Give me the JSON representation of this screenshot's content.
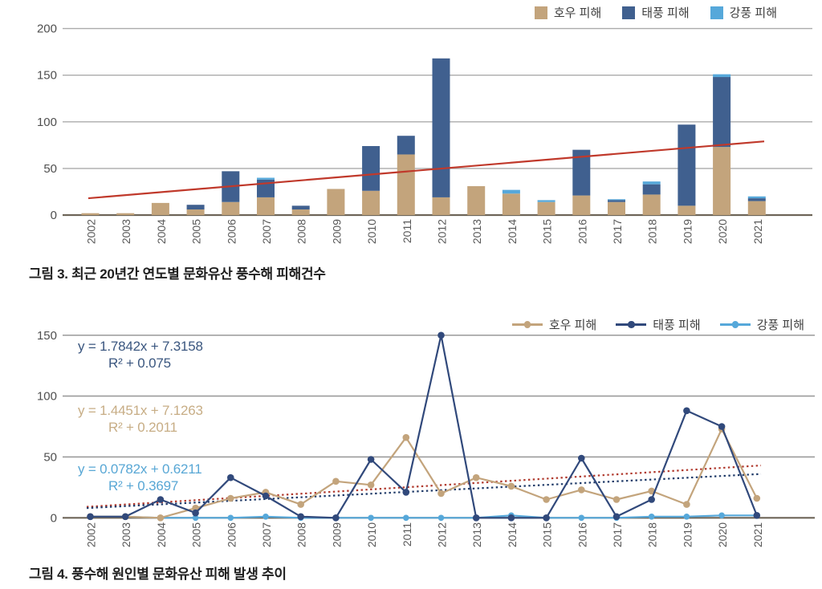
{
  "chart_data": [
    {
      "type": "bar",
      "stacked": true,
      "title": "그림 3. 최근 20년간 연도별 문화유산 풍수해 피해건수",
      "categories": [
        "2002",
        "2003",
        "2004",
        "2005",
        "2006",
        "2007",
        "2008",
        "2009",
        "2010",
        "2011",
        "2012",
        "2013",
        "2014",
        "2015",
        "2016",
        "2017",
        "2018",
        "2019",
        "2020",
        "2021"
      ],
      "series": [
        {
          "name": "호우 피해",
          "key": "rain",
          "color": "#c3a47c",
          "values": [
            2,
            2,
            13,
            6,
            14,
            19,
            6,
            28,
            26,
            65,
            19,
            31,
            23,
            14,
            21,
            14,
            22,
            10,
            73,
            15
          ]
        },
        {
          "name": "태풍 피해",
          "key": "typhoon",
          "color": "#40608f",
          "values": [
            0,
            0,
            0,
            5,
            33,
            19,
            4,
            0,
            48,
            20,
            149,
            0,
            0,
            0,
            49,
            2,
            11,
            87,
            75,
            3
          ]
        },
        {
          "name": "강풍 피해",
          "key": "wind",
          "color": "#56a8da",
          "values": [
            0,
            0,
            0,
            0,
            0,
            2,
            0,
            0,
            0,
            0,
            0,
            0,
            4,
            2,
            0,
            1,
            3,
            0,
            3,
            2
          ]
        }
      ],
      "trendline": {
        "color": "#c0392b",
        "start_value": 18,
        "end_value": 79
      },
      "ylim": [
        0,
        200
      ],
      "yticks": [
        0,
        50,
        100,
        150,
        200
      ],
      "grid": true,
      "legend_position": "top-right"
    },
    {
      "type": "line",
      "title": "그림 4. 풍수해 원인별 문화유산 피해 발생 추이",
      "categories": [
        "2002",
        "2003",
        "2004",
        "2005",
        "2006",
        "2007",
        "2008",
        "2009",
        "2010",
        "2011",
        "2012",
        "2013",
        "2014",
        "2015",
        "2016",
        "2017",
        "2018",
        "2019",
        "2020",
        "2021"
      ],
      "series": [
        {
          "name": "호우 피해",
          "key": "rain",
          "color": "#c3a47c",
          "values": [
            1,
            1,
            0,
            8,
            16,
            21,
            11,
            30,
            27,
            66,
            20,
            33,
            26,
            15,
            23,
            15,
            22,
            11,
            73,
            16
          ]
        },
        {
          "name": "태풍 피해",
          "key": "typhoon",
          "color": "#31497b",
          "values": [
            1,
            1,
            15,
            4,
            33,
            18,
            1,
            0,
            48,
            21,
            150,
            0,
            0,
            0,
            49,
            1,
            15,
            88,
            75,
            2
          ]
        },
        {
          "name": "강풍 피해",
          "key": "wind",
          "color": "#56a8da",
          "values": [
            1,
            1,
            0,
            0,
            0,
            1,
            0,
            0,
            0,
            0,
            0,
            0,
            2,
            0,
            0,
            0,
            1,
            1,
            2,
            2
          ]
        }
      ],
      "equations": [
        {
          "series": "태풍 피해",
          "line1": "y = 1.7842x + 7.3158",
          "line2": "R² + 0.075",
          "color": "#3a567f"
        },
        {
          "series": "호우 피해",
          "line1": "y = 1.4451x + 7.1263",
          "line2": "R² + 0.2011",
          "color": "#c7ad85"
        },
        {
          "series": "강풍 피해",
          "line1": "y = 0.0782x + 0.6211",
          "line2": "R² + 0.3697",
          "color": "#58a7d5"
        }
      ],
      "trendlines": [
        {
          "style": "dotted",
          "color": "#b03a2e",
          "start_value": 9,
          "end_value": 43
        },
        {
          "style": "dotted",
          "color": "#1f3a68",
          "start_value": 8,
          "end_value": 36
        }
      ],
      "ylim": [
        0,
        150
      ],
      "yticks": [
        0,
        50,
        100,
        150
      ],
      "grid": true,
      "legend_position": "top-right"
    }
  ]
}
